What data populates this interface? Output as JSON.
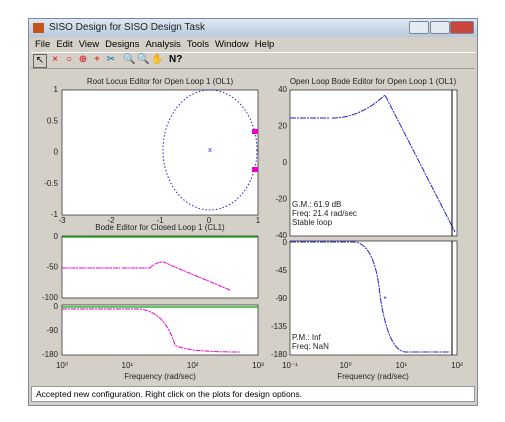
{
  "window": {
    "title": "SISO Design for SISO Design Task"
  },
  "menu": [
    "File",
    "Edit",
    "View",
    "Designs",
    "Analysis",
    "Tools",
    "Window",
    "Help"
  ],
  "root_locus": {
    "title": "Root Locus Editor for Open Loop 1 (OL1)",
    "yticks": [
      "1",
      "0.5",
      "0",
      "-0.5",
      "-1"
    ],
    "xticks": [
      "-3",
      "-2",
      "-1",
      "0",
      "1"
    ]
  },
  "closed_loop_bode": {
    "title": "Bode Editor for Closed Loop 1 (CL1)",
    "mag_yticks": [
      "0",
      "-50",
      "-100"
    ],
    "phase_yticks": [
      "0",
      "-90",
      "-180"
    ],
    "xticks": [
      "10⁰",
      "10¹",
      "10²",
      "10³"
    ],
    "xlabel": "Frequency (rad/sec)"
  },
  "open_loop_bode": {
    "title": "Open Loop Bode Editor for Open Loop 1 (OL1)",
    "mag_yticks": [
      "40",
      "20",
      "0",
      "-20",
      "-40"
    ],
    "phase_yticks": [
      "0",
      "-45",
      "-90",
      "-135",
      "-180"
    ],
    "xticks": [
      "10⁻¹",
      "10⁰",
      "10¹",
      "10²"
    ],
    "xlabel": "Frequency (rad/sec)",
    "gain_margin": "G.M.: 61.9 dB",
    "gm_freq": "Freq: 21.4 rad/sec",
    "stability": "Stable loop",
    "phase_margin": "P.M.: Inf",
    "pm_freq": "Freq: NaN"
  },
  "status": "Accepted new configuration. Right click on the plots for design options."
}
